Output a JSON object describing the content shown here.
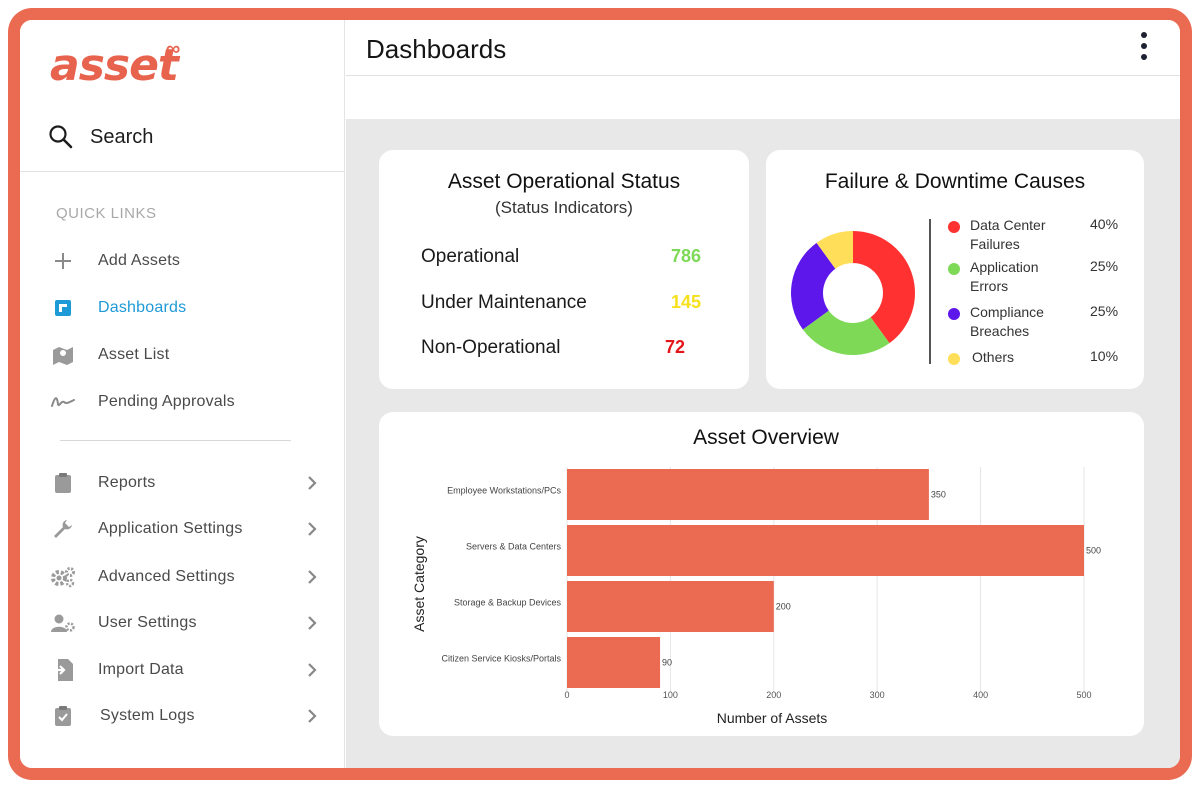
{
  "app": {
    "logo": "asset",
    "logo_mark": "∞"
  },
  "sidebar": {
    "search_label": "Search",
    "quick_links_heading": "QUICK LINKS",
    "quick_links": [
      {
        "label": "Add Assets",
        "icon": "plus-icon"
      },
      {
        "label": "Dashboards",
        "icon": "dashboard-icon",
        "active": true
      },
      {
        "label": "Asset List",
        "icon": "map-icon"
      },
      {
        "label": "Pending Approvals",
        "icon": "signature-icon"
      }
    ],
    "menu": [
      {
        "label": "Reports",
        "icon": "clipboard-icon"
      },
      {
        "label": "Application Settings",
        "icon": "wrench-icon"
      },
      {
        "label": "Advanced Settings",
        "icon": "gears-icon"
      },
      {
        "label": "User Settings",
        "icon": "user-gear-icon"
      },
      {
        "label": "Import Data",
        "icon": "import-icon"
      },
      {
        "label": "System Logs",
        "icon": "clipboard-check-icon"
      }
    ]
  },
  "header": {
    "title": "Dashboards"
  },
  "status_card": {
    "title": "Asset Operational Status",
    "subtitle": "(Status Indicators)",
    "rows": [
      {
        "label": "Operational",
        "value": "786",
        "color": "#7ed957"
      },
      {
        "label": "Under Maintenance",
        "value": "145",
        "color": "#f7e01c"
      },
      {
        "label": "Non-Operational",
        "value": "72",
        "color": "#e4161b"
      }
    ]
  },
  "failure_card": {
    "title": "Failure & Downtime Causes",
    "legend": [
      {
        "label": "Data Center Failures",
        "value": "40%",
        "color": "#ff3131"
      },
      {
        "label": "Application Errors",
        "value": "25%",
        "color": "#7ed957"
      },
      {
        "label": "Compliance Breaches",
        "value": "25%",
        "color": "#5e17eb"
      },
      {
        "label": "Others",
        "value": "10%",
        "color": "#ffde59"
      }
    ]
  },
  "chart_data": [
    {
      "type": "pie",
      "title": "Failure & Downtime Causes",
      "categories": [
        "Data Center Failures",
        "Application Errors",
        "Compliance Breaches",
        "Others"
      ],
      "values": [
        40,
        25,
        25,
        10
      ],
      "colors": [
        "#ff3131",
        "#7ed957",
        "#5e17eb",
        "#ffde59"
      ],
      "donut": true,
      "legend": "right"
    },
    {
      "type": "bar",
      "orientation": "horizontal",
      "title": "Asset Overview",
      "categories": [
        "Employee Workstations/PCs",
        "Servers & Data Centers",
        "Storage & Backup Devices",
        "Citizen Service Kiosks/Portals"
      ],
      "values": [
        350,
        500,
        200,
        90
      ],
      "xlabel": "Number of Assets",
      "ylabel": "Asset Category",
      "xlim": [
        0,
        500
      ],
      "xticks": [
        0,
        100,
        200,
        300,
        400,
        500
      ],
      "color": "#ea6a52",
      "grid": true
    }
  ]
}
